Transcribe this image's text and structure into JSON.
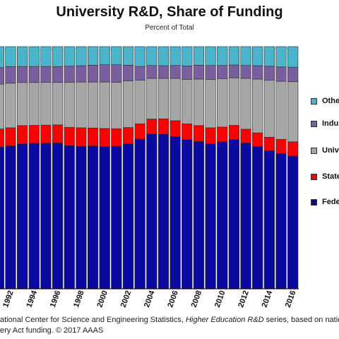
{
  "title": "University R&D, Share of Funding",
  "subtitle": "Percent of Total",
  "source": {
    "part1": "ational Center for Science and Engineering Statistics, ",
    "italic": "Higher Education R&D",
    "part2": " series, based on national",
    "line2": "ery Act funding. © 2017 AAAS"
  },
  "colors": {
    "federal": "#0a0aa0",
    "state": "#ff0000",
    "university": "#a6a6a6",
    "industry": "#7a5fa0",
    "other": "#4ab4cc"
  },
  "legend": [
    {
      "label": "Othe",
      "key": "other"
    },
    {
      "label": "Indus",
      "key": "industry"
    },
    {
      "label": "Unive",
      "key": "university"
    },
    {
      "label": "State",
      "key": "state"
    },
    {
      "label": "Feder",
      "key": "federal"
    }
  ],
  "chart_data": {
    "type": "bar",
    "stacked": true,
    "ylim": [
      0,
      100
    ],
    "categories": [
      "1991",
      "1992",
      "1993",
      "1994",
      "1995",
      "1996",
      "1997",
      "1998",
      "1999",
      "2000",
      "2001",
      "2002",
      "2003",
      "2004",
      "2005",
      "2006",
      "2007",
      "2008",
      "2009",
      "2010",
      "2011",
      "2012",
      "2013",
      "2014",
      "2015",
      "2016"
    ],
    "tick_labels": [
      "1992",
      "1994",
      "1996",
      "1998",
      "2000",
      "2002",
      "2004",
      "2006",
      "2008",
      "2010",
      "2012",
      "2014",
      "2016"
    ],
    "series": [
      {
        "name": "Feder",
        "key": "federal",
        "values": [
          58.5,
          59.0,
          59.8,
          60.1,
          60.1,
          60.2,
          59.1,
          58.9,
          59.0,
          58.7,
          58.9,
          59.8,
          61.8,
          63.9,
          63.8,
          62.9,
          61.6,
          60.8,
          59.9,
          60.7,
          61.6,
          60.2,
          58.8,
          57.0,
          55.9,
          54.8
        ]
      },
      {
        "name": "State",
        "key": "state",
        "values": [
          7.5,
          7.5,
          7.6,
          7.4,
          7.5,
          7.5,
          7.6,
          7.6,
          7.4,
          7.5,
          7.2,
          6.8,
          6.3,
          6.2,
          6.4,
          6.5,
          6.5,
          6.6,
          6.6,
          6.1,
          5.9,
          5.7,
          5.6,
          5.6,
          5.8,
          5.9
        ]
      },
      {
        "name": "Unive",
        "key": "university",
        "values": [
          18.5,
          18.4,
          17.8,
          17.7,
          17.7,
          17.5,
          18.6,
          18.9,
          19.0,
          19.2,
          19.2,
          19.3,
          18.1,
          16.8,
          16.7,
          17.5,
          18.4,
          19.2,
          20.0,
          20.0,
          19.6,
          21.0,
          22.2,
          23.6,
          24.0,
          24.8
        ]
      },
      {
        "name": "Indus",
        "key": "industry",
        "values": [
          6.8,
          6.8,
          6.6,
          6.6,
          6.5,
          6.5,
          6.6,
          6.7,
          6.9,
          7.1,
          7.2,
          6.4,
          5.6,
          5.3,
          5.2,
          5.3,
          5.5,
          5.7,
          5.7,
          5.4,
          5.3,
          5.3,
          5.5,
          5.7,
          5.9,
          6.0
        ]
      },
      {
        "name": "Othe",
        "key": "other",
        "values": [
          8.7,
          8.3,
          8.2,
          8.2,
          8.2,
          8.3,
          8.1,
          7.9,
          7.7,
          7.5,
          7.5,
          7.7,
          8.2,
          7.8,
          7.9,
          7.8,
          8.0,
          7.7,
          7.8,
          7.8,
          7.6,
          7.8,
          7.9,
          8.1,
          8.4,
          8.5
        ]
      }
    ]
  }
}
